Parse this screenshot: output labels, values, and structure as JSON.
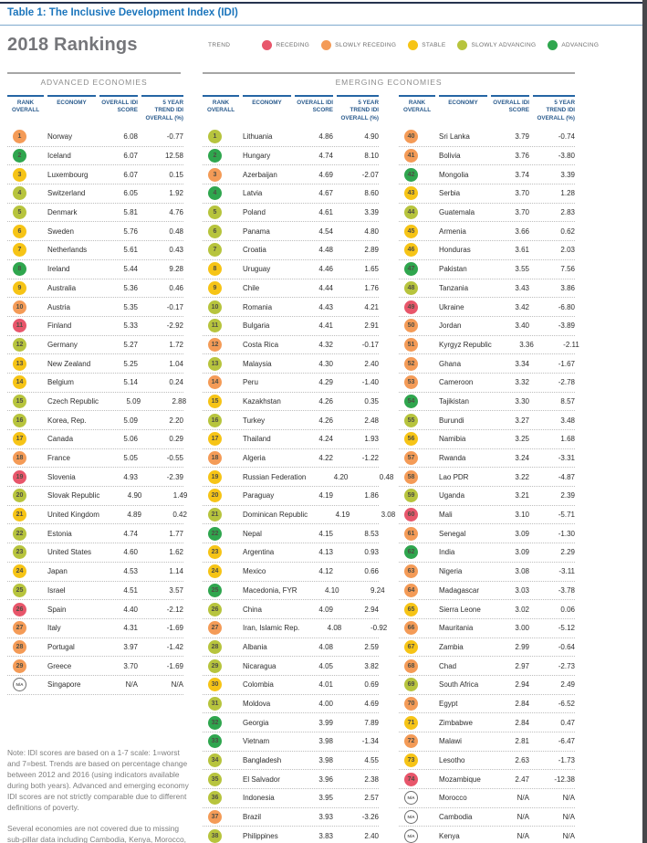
{
  "page": {
    "title": "Table 1: The Inclusive Development Index (IDI)",
    "rankings_title": "2018 Rankings"
  },
  "legend": {
    "label": "TREND",
    "items": [
      {
        "key": "receding",
        "label": "RECEDING",
        "color": "#E8566B"
      },
      {
        "key": "slowly_receding",
        "label": "SLOWLY RECEDING",
        "color": "#F49B57"
      },
      {
        "key": "stable",
        "label": "STABLE",
        "color": "#F6C416"
      },
      {
        "key": "slowly_advancing",
        "label": "SLOWLY ADVANCING",
        "color": "#B7C43D"
      },
      {
        "key": "advancing",
        "label": "ADVANCING",
        "color": "#2FA64E"
      }
    ],
    "na_color": "#FFFFFF"
  },
  "sections": {
    "advanced_label": "ADVANCED ECONOMIES",
    "emerging_label": "EMERGING ECONOMIES"
  },
  "table_headers": [
    "RANK OVERALL",
    "ECONOMY",
    "OVERALL IDI SCORE",
    "5 YEAR TREND IDI OVERALL (%)"
  ],
  "tables": {
    "advanced": [
      [
        "1",
        "Norway",
        "6.08",
        "-0.77",
        "slowly_receding"
      ],
      [
        "2",
        "Iceland",
        "6.07",
        "12.58",
        "advancing"
      ],
      [
        "3",
        "Luxembourg",
        "6.07",
        "0.15",
        "stable"
      ],
      [
        "4",
        "Switzerland",
        "6.05",
        "1.92",
        "slowly_advancing"
      ],
      [
        "5",
        "Denmark",
        "5.81",
        "4.76",
        "slowly_advancing"
      ],
      [
        "6",
        "Sweden",
        "5.76",
        "0.48",
        "stable"
      ],
      [
        "7",
        "Netherlands",
        "5.61",
        "0.43",
        "stable"
      ],
      [
        "8",
        "Ireland",
        "5.44",
        "9.28",
        "advancing"
      ],
      [
        "9",
        "Australia",
        "5.36",
        "0.46",
        "stable"
      ],
      [
        "10",
        "Austria",
        "5.35",
        "-0.17",
        "slowly_receding"
      ],
      [
        "11",
        "Finland",
        "5.33",
        "-2.92",
        "receding"
      ],
      [
        "12",
        "Germany",
        "5.27",
        "1.72",
        "slowly_advancing"
      ],
      [
        "13",
        "New Zealand",
        "5.25",
        "1.04",
        "stable"
      ],
      [
        "14",
        "Belgium",
        "5.14",
        "0.24",
        "stable"
      ],
      [
        "15",
        "Czech Republic",
        "5.09",
        "2.88",
        "slowly_advancing"
      ],
      [
        "16",
        "Korea, Rep.",
        "5.09",
        "2.20",
        "slowly_advancing"
      ],
      [
        "17",
        "Canada",
        "5.06",
        "0.29",
        "stable"
      ],
      [
        "18",
        "France",
        "5.05",
        "-0.55",
        "slowly_receding"
      ],
      [
        "19",
        "Slovenia",
        "4.93",
        "-2.39",
        "receding"
      ],
      [
        "20",
        "Slovak Republic",
        "4.90",
        "1.49",
        "slowly_advancing"
      ],
      [
        "21",
        "United Kingdom",
        "4.89",
        "0.42",
        "stable"
      ],
      [
        "22",
        "Estonia",
        "4.74",
        "1.77",
        "slowly_advancing"
      ],
      [
        "23",
        "United States",
        "4.60",
        "1.62",
        "slowly_advancing"
      ],
      [
        "24",
        "Japan",
        "4.53",
        "1.14",
        "stable"
      ],
      [
        "25",
        "Israel",
        "4.51",
        "3.57",
        "slowly_advancing"
      ],
      [
        "26",
        "Spain",
        "4.40",
        "-2.12",
        "receding"
      ],
      [
        "27",
        "Italy",
        "4.31",
        "-1.69",
        "slowly_receding"
      ],
      [
        "28",
        "Portugal",
        "3.97",
        "-1.42",
        "slowly_receding"
      ],
      [
        "29",
        "Greece",
        "3.70",
        "-1.69",
        "slowly_receding"
      ],
      [
        "N/A",
        "Singapore",
        "N/A",
        "N/A",
        "na"
      ]
    ],
    "emerging_1": [
      [
        "1",
        "Lithuania",
        "4.86",
        "4.90",
        "slowly_advancing"
      ],
      [
        "2",
        "Hungary",
        "4.74",
        "8.10",
        "advancing"
      ],
      [
        "3",
        "Azerbaijan",
        "4.69",
        "-2.07",
        "slowly_receding"
      ],
      [
        "4",
        "Latvia",
        "4.67",
        "8.60",
        "advancing"
      ],
      [
        "5",
        "Poland",
        "4.61",
        "3.39",
        "slowly_advancing"
      ],
      [
        "6",
        "Panama",
        "4.54",
        "4.80",
        "slowly_advancing"
      ],
      [
        "7",
        "Croatia",
        "4.48",
        "2.89",
        "slowly_advancing"
      ],
      [
        "8",
        "Uruguay",
        "4.46",
        "1.65",
        "stable"
      ],
      [
        "9",
        "Chile",
        "4.44",
        "1.76",
        "stable"
      ],
      [
        "10",
        "Romania",
        "4.43",
        "4.21",
        "slowly_advancing"
      ],
      [
        "11",
        "Bulgaria",
        "4.41",
        "2.91",
        "slowly_advancing"
      ],
      [
        "12",
        "Costa Rica",
        "4.32",
        "-0.17",
        "slowly_receding"
      ],
      [
        "13",
        "Malaysia",
        "4.30",
        "2.40",
        "slowly_advancing"
      ],
      [
        "14",
        "Peru",
        "4.29",
        "-1.40",
        "slowly_receding"
      ],
      [
        "15",
        "Kazakhstan",
        "4.26",
        "0.35",
        "stable"
      ],
      [
        "16",
        "Turkey",
        "4.26",
        "2.48",
        "slowly_advancing"
      ],
      [
        "17",
        "Thailand",
        "4.24",
        "1.93",
        "stable"
      ],
      [
        "18",
        "Algeria",
        "4.22",
        "-1.22",
        "slowly_receding"
      ],
      [
        "19",
        "Russian Federation",
        "4.20",
        "0.48",
        "stable"
      ],
      [
        "20",
        "Paraguay",
        "4.19",
        "1.86",
        "stable"
      ],
      [
        "21",
        "Dominican Republic",
        "4.19",
        "3.08",
        "slowly_advancing"
      ],
      [
        "22",
        "Nepal",
        "4.15",
        "8.53",
        "advancing"
      ],
      [
        "23",
        "Argentina",
        "4.13",
        "0.93",
        "stable"
      ],
      [
        "24",
        "Mexico",
        "4.12",
        "0.66",
        "stable"
      ],
      [
        "25",
        "Macedonia, FYR",
        "4.10",
        "9.24",
        "advancing"
      ],
      [
        "26",
        "China",
        "4.09",
        "2.94",
        "slowly_advancing"
      ],
      [
        "27",
        "Iran, Islamic Rep.",
        "4.08",
        "-0.92",
        "slowly_receding"
      ],
      [
        "28",
        "Albania",
        "4.08",
        "2.59",
        "slowly_advancing"
      ],
      [
        "29",
        "Nicaragua",
        "4.05",
        "3.82",
        "slowly_advancing"
      ],
      [
        "30",
        "Colombia",
        "4.01",
        "0.69",
        "stable"
      ],
      [
        "31",
        "Moldova",
        "4.00",
        "4.69",
        "slowly_advancing"
      ],
      [
        "32",
        "Georgia",
        "3.99",
        "7.89",
        "advancing"
      ],
      [
        "33",
        "Vietnam",
        "3.98",
        "-1.34",
        "advancing"
      ],
      [
        "34",
        "Bangladesh",
        "3.98",
        "4.55",
        "slowly_advancing"
      ],
      [
        "35",
        "El Salvador",
        "3.96",
        "2.38",
        "slowly_advancing"
      ],
      [
        "36",
        "Indonesia",
        "3.95",
        "2.57",
        "slowly_advancing"
      ],
      [
        "37",
        "Brazil",
        "3.93",
        "-3.26",
        "slowly_receding"
      ],
      [
        "38",
        "Philippines",
        "3.83",
        "2.40",
        "slowly_advancing"
      ]
    ],
    "emerging_2": [
      [
        "40",
        "Sri Lanka",
        "3.79",
        "-0.74",
        "slowly_receding"
      ],
      [
        "41",
        "Bolivia",
        "3.76",
        "-3.80",
        "slowly_receding"
      ],
      [
        "42",
        "Mongolia",
        "3.74",
        "3.39",
        "advancing"
      ],
      [
        "43",
        "Serbia",
        "3.70",
        "1.28",
        "stable"
      ],
      [
        "44",
        "Guatemala",
        "3.70",
        "2.83",
        "slowly_advancing"
      ],
      [
        "45",
        "Armenia",
        "3.66",
        "0.62",
        "stable"
      ],
      [
        "46",
        "Honduras",
        "3.61",
        "2.03",
        "stable"
      ],
      [
        "47",
        "Pakistan",
        "3.55",
        "7.56",
        "advancing"
      ],
      [
        "48",
        "Tanzania",
        "3.43",
        "3.86",
        "slowly_advancing"
      ],
      [
        "49",
        "Ukraine",
        "3.42",
        "-6.80",
        "receding"
      ],
      [
        "50",
        "Jordan",
        "3.40",
        "-3.89",
        "slowly_receding"
      ],
      [
        "51",
        "Kyrgyz Republic",
        "3.36",
        "-2.11",
        "slowly_receding"
      ],
      [
        "52",
        "Ghana",
        "3.34",
        "-1.67",
        "slowly_receding"
      ],
      [
        "53",
        "Cameroon",
        "3.32",
        "-2.78",
        "slowly_receding"
      ],
      [
        "54",
        "Tajikistan",
        "3.30",
        "8.57",
        "advancing"
      ],
      [
        "55",
        "Burundi",
        "3.27",
        "3.48",
        "slowly_advancing"
      ],
      [
        "56",
        "Namibia",
        "3.25",
        "1.68",
        "stable"
      ],
      [
        "57",
        "Rwanda",
        "3.24",
        "-3.31",
        "slowly_receding"
      ],
      [
        "58",
        "Lao PDR",
        "3.22",
        "-4.87",
        "slowly_receding"
      ],
      [
        "59",
        "Uganda",
        "3.21",
        "2.39",
        "slowly_advancing"
      ],
      [
        "60",
        "Mali",
        "3.10",
        "-5.71",
        "receding"
      ],
      [
        "61",
        "Senegal",
        "3.09",
        "-1.30",
        "slowly_receding"
      ],
      [
        "62",
        "India",
        "3.09",
        "2.29",
        "advancing"
      ],
      [
        "63",
        "Nigeria",
        "3.08",
        "-3.11",
        "slowly_receding"
      ],
      [
        "64",
        "Madagascar",
        "3.03",
        "-3.78",
        "slowly_receding"
      ],
      [
        "65",
        "Sierra Leone",
        "3.02",
        "0.06",
        "stable"
      ],
      [
        "66",
        "Mauritania",
        "3.00",
        "-5.12",
        "slowly_receding"
      ],
      [
        "67",
        "Zambia",
        "2.99",
        "-0.64",
        "stable"
      ],
      [
        "68",
        "Chad",
        "2.97",
        "-2.73",
        "slowly_receding"
      ],
      [
        "69",
        "South Africa",
        "2.94",
        "2.49",
        "slowly_advancing"
      ],
      [
        "70",
        "Egypt",
        "2.84",
        "-6.52",
        "slowly_receding"
      ],
      [
        "71",
        "Zimbabwe",
        "2.84",
        "0.47",
        "stable"
      ],
      [
        "72",
        "Malawi",
        "2.81",
        "-6.47",
        "slowly_receding"
      ],
      [
        "73",
        "Lesotho",
        "2.63",
        "-1.73",
        "stable"
      ],
      [
        "74",
        "Mozambique",
        "2.47",
        "-12.38",
        "receding"
      ],
      [
        "N/A",
        "Morocco",
        "N/A",
        "N/A",
        "na"
      ],
      [
        "N/A",
        "Cambodia",
        "N/A",
        "N/A",
        "na"
      ],
      [
        "N/A",
        "Kenya",
        "N/A",
        "N/A",
        "na"
      ]
    ]
  },
  "notes": {
    "para1": "Note: IDI scores are based on a 1-7 scale: 1=worst and 7=best. Trends are based on percentage change between 2012 and 2016 (using indicators available during both years). Advanced and emerging economy IDI scores are not strictly comparable due to different definitions of poverty.",
    "para2": "Several economies are not covered due to missing sub-pillar data including Cambodia, Kenya, Morocco, and Singapore, which were missing"
  }
}
